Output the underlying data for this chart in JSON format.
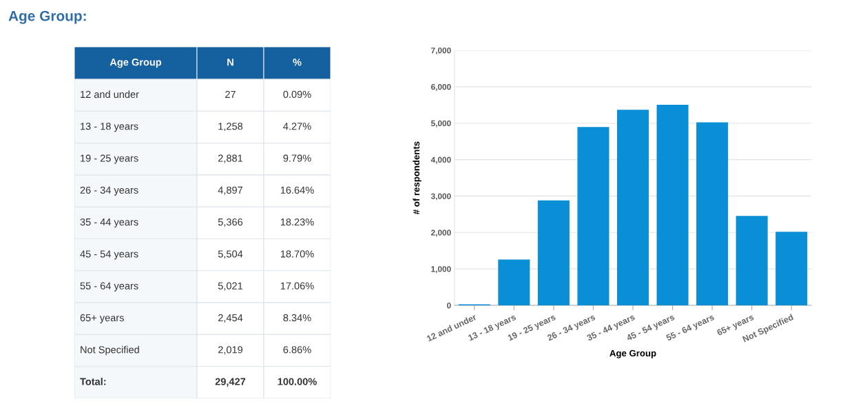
{
  "chart_data": [
    {
      "type": "other",
      "title": "Age Group:",
      "annotations": [
        "Age Group",
        "N",
        "%",
        "12 and under",
        "27",
        "0.09%",
        "13 - 18 years",
        "1,258",
        "4.27%",
        "19 - 25 years",
        "2,881",
        "9.79%",
        "26 - 34 years",
        "4,897",
        "16.64%",
        "35 - 44 years",
        "5,366",
        "18.23%",
        "45 - 54 years",
        "5,504",
        "18.70%",
        "55 - 64 years",
        "5,021",
        "17.06%",
        "65+ years",
        "2,454",
        "8.34%",
        "Not Specified",
        "2,019",
        "6.86%",
        "Total:",
        "29,427",
        "100.00%"
      ]
    },
    {
      "type": "bar",
      "xlabel": "Age Group",
      "ylabel": "# of respondents",
      "color": "#0a8fd6",
      "categories": [
        "12 and under",
        "13 - 18 years",
        "19 - 25 years",
        "26 - 34 years",
        "35 - 44 years",
        "45 - 54 years",
        "55 - 64 years",
        "65+ years",
        "Not Specified"
      ],
      "values": [
        27,
        1258,
        2881,
        4897,
        5366,
        5504,
        5021,
        2454,
        2019
      ],
      "ylim": [
        0,
        7000
      ],
      "yticks": [
        0,
        {
          "value": 1000,
          "label": "1,000"
        },
        {
          "value": 2000,
          "label": "2,000"
        },
        {
          "value": 3000,
          "label": "3,000"
        },
        {
          "value": 4000,
          "label": "4,000"
        },
        {
          "value": 5000,
          "label": "5,000"
        },
        {
          "value": 6000,
          "label": "6,000"
        },
        {
          "value": 7000,
          "label": "7,000"
        }
      ],
      "grid": "y"
    }
  ]
}
